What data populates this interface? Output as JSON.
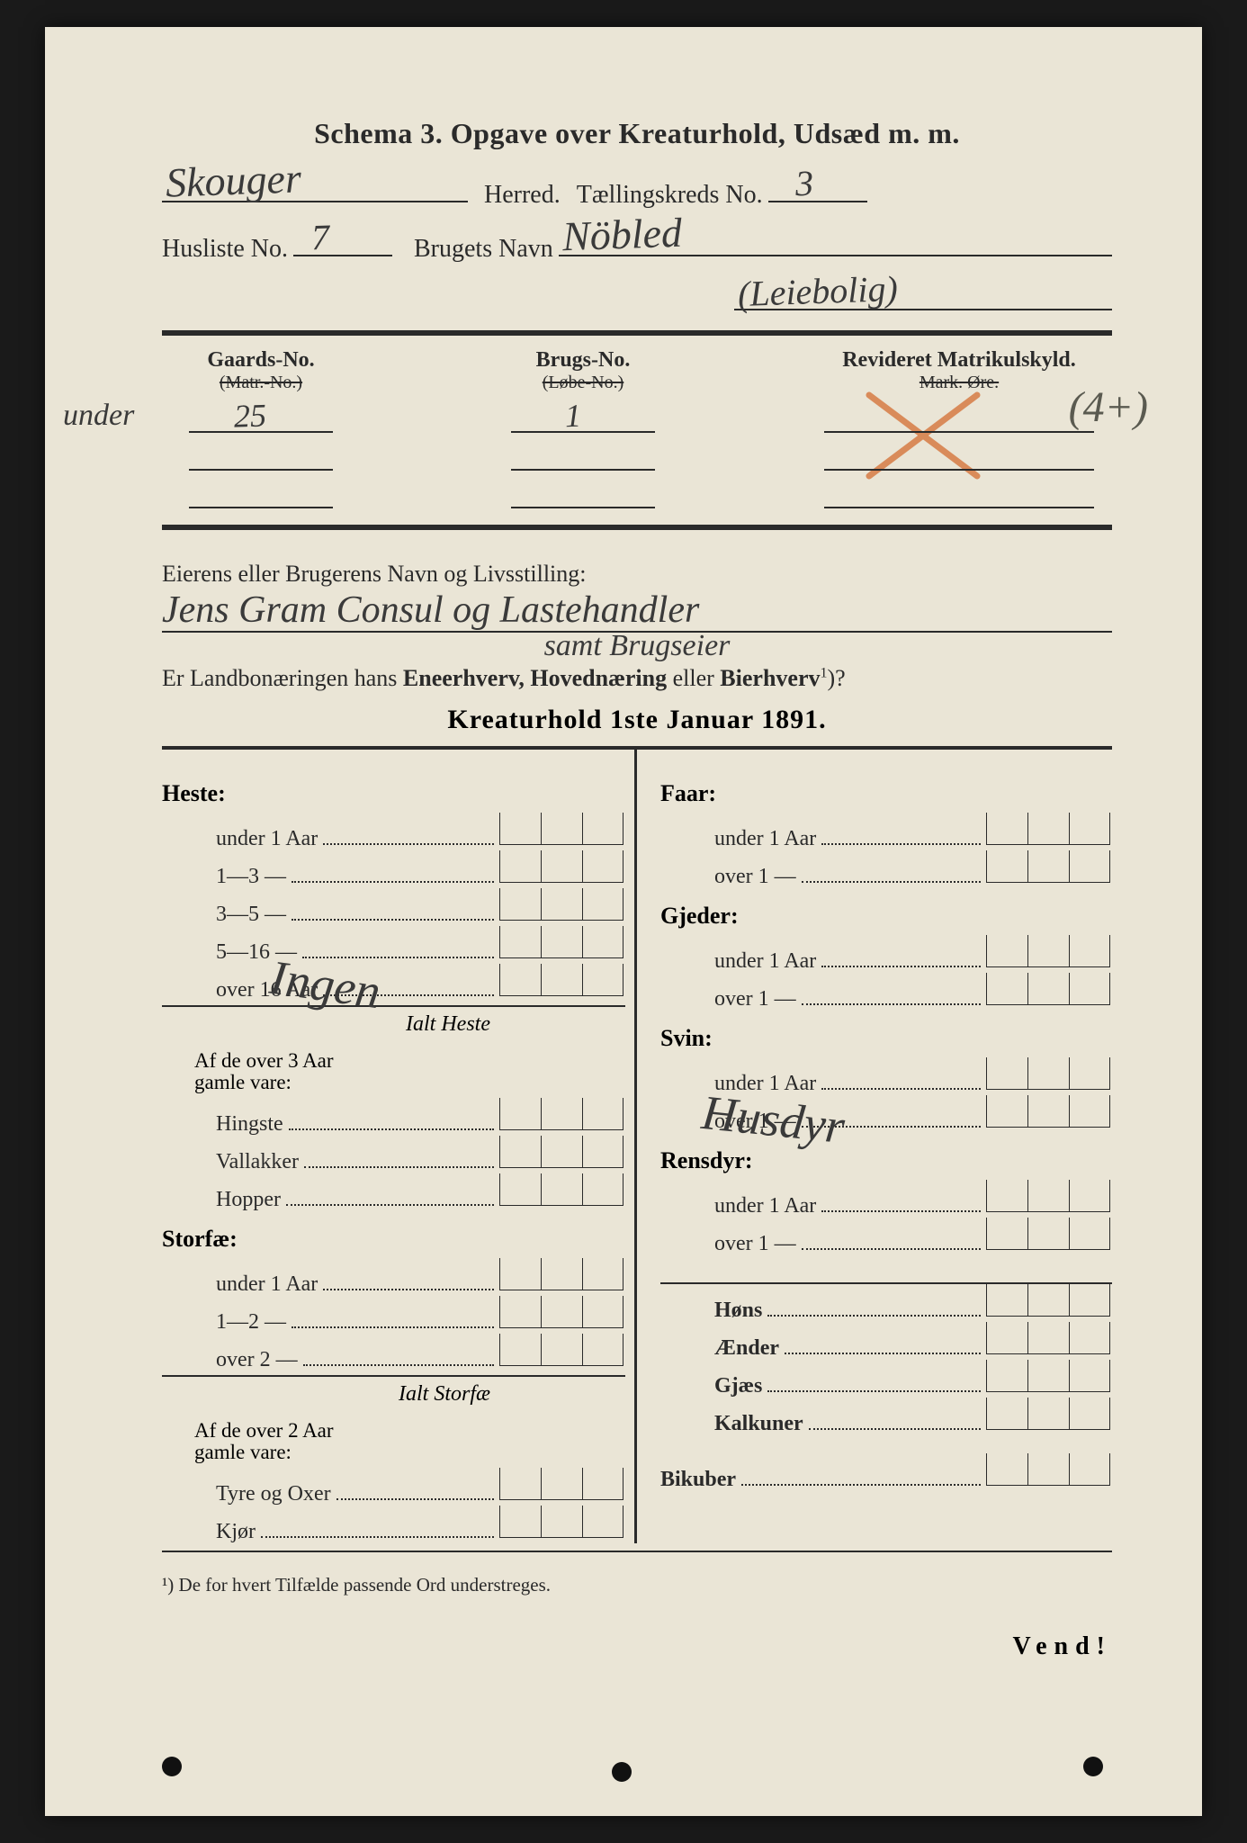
{
  "colors": {
    "pageBg": "#eae5d6",
    "ink": "#2a2a2a",
    "handInk": "#3a3a3a",
    "redPencil": "#d98b5a",
    "outer": "#1a1a1a"
  },
  "title": "Schema 3.  Opgave over Kreaturhold, Udsæd m. m.",
  "line1": {
    "herredHand": "Skouger",
    "herredLabel": "Herred.",
    "kredsLabel": "Tællingskreds No.",
    "kredsHand": "3"
  },
  "line2": {
    "huslisteLabel": "Husliste No.",
    "huslisteHand": "7",
    "brugetLabel": "Brugets Navn",
    "brugetHand": "Nöbled",
    "brugetSub": "(Leiebolig)"
  },
  "gnrHeader": {
    "col1": "Gaards-No.",
    "col1strike": "(Matr.-No.)",
    "col2": "Brugs-No.",
    "col2strike": "(Løbe-No.)",
    "col3": "Revideret Matrikulskyld.",
    "col3sub": "Mark. Øre."
  },
  "gnrValues": {
    "marginHand": "under",
    "gnr": "25",
    "bnr": "1",
    "parenHand": "(4+)"
  },
  "owner": {
    "label1": "Eierens eller Brugerens Navn og Livsstilling:",
    "hand1": "Jens Gram Consul og Lastehandler",
    "hand2": "samt Brugseier",
    "q": "Er Landbonæringen hans ",
    "qb1": "Eneerhverv,",
    "qm": " ",
    "qb2": "Hovednæring",
    "qm2": " eller ",
    "qb3": "Bierhverv",
    "qsup": "1",
    "qend": ")?"
  },
  "kreaturTitle": "Kreaturhold 1ste Januar 1891.",
  "left": {
    "heste": {
      "title": "Heste:",
      "rows": [
        "under 1 Aar",
        "1—3   —",
        "3—5   —",
        "5—16  —",
        "over 16 Aar"
      ],
      "subtotal": "Ialt Heste",
      "sub2label": "Af de over 3 Aar",
      "sub2label2": "gamle vare:",
      "sub2rows": [
        "Hingste",
        "Vallakker",
        "Hopper"
      ]
    },
    "storfae": {
      "title": "Storfæ:",
      "rows": [
        "under 1 Aar",
        "1—2   —",
        "over 2   —"
      ],
      "subtotal": "Ialt Storfæ",
      "sub2label": "Af de over 2 Aar",
      "sub2label2": "gamle vare:",
      "sub2rows": [
        "Tyre og Oxer",
        "Kjør"
      ]
    }
  },
  "right": {
    "faar": {
      "title": "Faar:",
      "rows": [
        "under 1 Aar",
        "over 1   —"
      ]
    },
    "gjeder": {
      "title": "Gjeder:",
      "rows": [
        "under 1 Aar",
        "over 1   —"
      ]
    },
    "svin": {
      "title": "Svin:",
      "rows": [
        "under 1 Aar",
        "over 1   —"
      ]
    },
    "rensdyr": {
      "title": "Rensdyr:",
      "rows": [
        "under 1 Aar",
        "over 1   —"
      ]
    },
    "poultry": [
      "Høns",
      "Ænder",
      "Gjæs",
      "Kalkuner"
    ],
    "bikuber": "Bikuber"
  },
  "diagonals": {
    "d1": "Ingen",
    "d2": "Husdyr"
  },
  "footnote": "¹) De for hvert Tilfælde passende Ord understreges.",
  "vend": "Vend!"
}
